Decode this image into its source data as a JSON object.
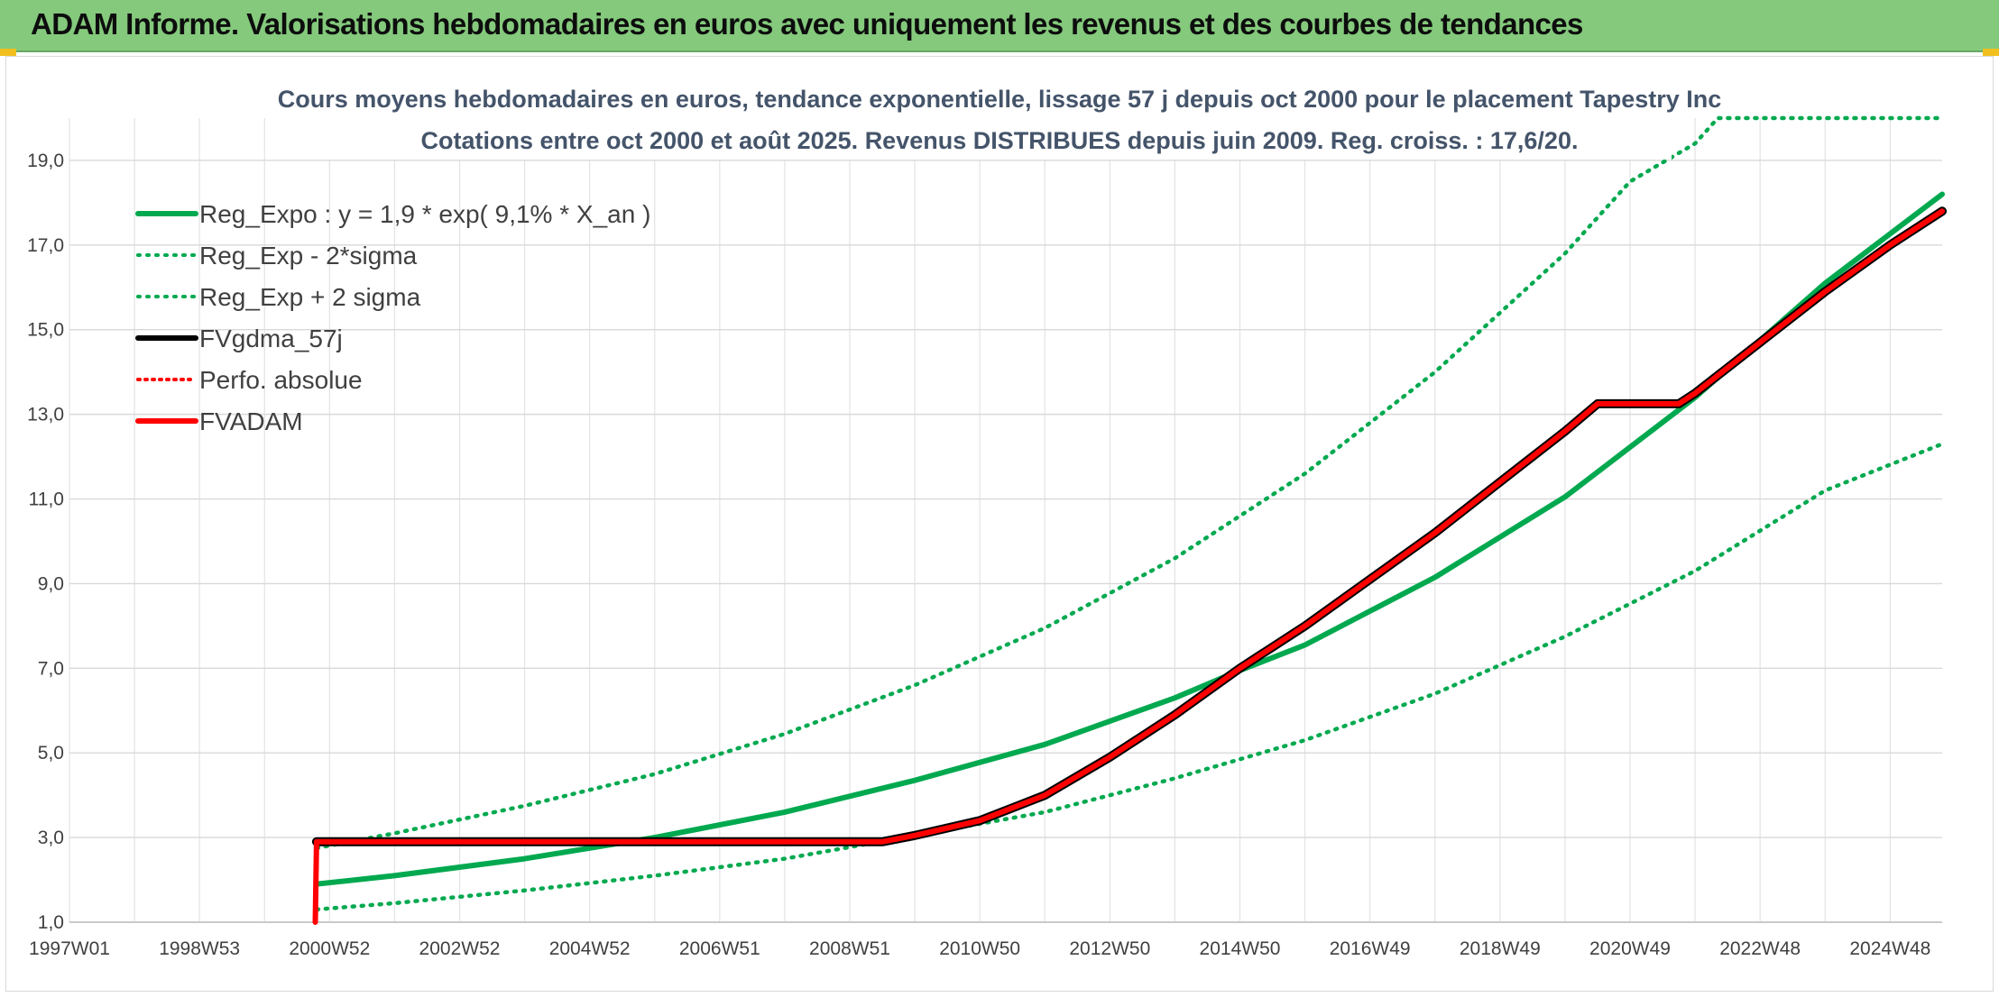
{
  "banner": {
    "title": "ADAM Informe. Valorisations hebdomadaires en euros avec uniquement les revenus et des courbes de tendances"
  },
  "colors": {
    "banner_bg": "#84c97c",
    "reg_expo": "#00a94f",
    "sigma_bands": "#00a94f",
    "fvgdma": "#000000",
    "perfo": "#ff0000",
    "fvadam": "#ff0000",
    "title_text": "#44546a"
  },
  "chart_data": {
    "type": "line",
    "title": [
      "Cours moyens hebdomadaires en euros, tendance exponentielle, lissage 57 j depuis oct 2000 pour le placement Tapestry Inc",
      "Cotations entre oct 2000 et août 2025. Revenus DISTRIBUES depuis juin 2009. Reg. croiss. : 17,6/20."
    ],
    "xlabel": "",
    "ylabel": "",
    "xlim": [
      1997.0,
      2025.8
    ],
    "ylim": [
      1.0,
      20.0
    ],
    "grid": true,
    "legend_position": "top-left",
    "x_ticks": [
      {
        "label": "1997W01",
        "x": 1997.0
      },
      {
        "label": "1998W53",
        "x": 1999.0
      },
      {
        "label": "2000W52",
        "x": 2001.0
      },
      {
        "label": "2002W52",
        "x": 2003.0
      },
      {
        "label": "2004W52",
        "x": 2005.0
      },
      {
        "label": "2006W51",
        "x": 2007.0
      },
      {
        "label": "2008W51",
        "x": 2009.0
      },
      {
        "label": "2010W50",
        "x": 2011.0
      },
      {
        "label": "2012W50",
        "x": 2013.0
      },
      {
        "label": "2014W50",
        "x": 2015.0
      },
      {
        "label": "2016W49",
        "x": 2017.0
      },
      {
        "label": "2018W49",
        "x": 2019.0
      },
      {
        "label": "2020W49",
        "x": 2021.0
      },
      {
        "label": "2022W48",
        "x": 2023.0
      },
      {
        "label": "2024W48",
        "x": 2025.0
      }
    ],
    "y_ticks": [
      {
        "label": "1,0",
        "y": 1.0
      },
      {
        "label": "3,0",
        "y": 3.0
      },
      {
        "label": "5,0",
        "y": 5.0
      },
      {
        "label": "7,0",
        "y": 7.0
      },
      {
        "label": "9,0",
        "y": 9.0
      },
      {
        "label": "11,0",
        "y": 11.0
      },
      {
        "label": "13,0",
        "y": 13.0
      },
      {
        "label": "15,0",
        "y": 15.0
      },
      {
        "label": "17,0",
        "y": 17.0
      },
      {
        "label": "19,0",
        "y": 19.0
      }
    ],
    "series": [
      {
        "name": "Reg_Expo : y = 1,9 * exp( 9,1% *  X_an )",
        "style": "solid-thick-green",
        "x": [
          2000.8,
          2002.0,
          2004.0,
          2006.0,
          2008.0,
          2010.0,
          2012.0,
          2014.0,
          2015.0,
          2016.0,
          2018.0,
          2020.0,
          2022.0,
          2024.0,
          2025.8
        ],
        "y": [
          1.9,
          2.1,
          2.5,
          3.0,
          3.6,
          4.35,
          5.2,
          6.3,
          6.95,
          7.55,
          9.15,
          11.05,
          13.4,
          16.1,
          18.2
        ]
      },
      {
        "name": "Reg_Exp - 2*sigma",
        "style": "dotted-green",
        "x": [
          2000.8,
          2002.0,
          2004.0,
          2006.0,
          2008.0,
          2010.0,
          2012.0,
          2014.0,
          2016.0,
          2018.0,
          2020.0,
          2022.0,
          2024.0,
          2025.8
        ],
        "y": [
          1.3,
          1.45,
          1.75,
          2.1,
          2.5,
          3.05,
          3.6,
          4.4,
          5.3,
          6.4,
          7.75,
          9.3,
          11.2,
          12.3
        ]
      },
      {
        "name": "Reg_Exp + 2 sigma",
        "style": "dotted-green",
        "x": [
          2000.8,
          2002.0,
          2004.0,
          2006.0,
          2008.0,
          2010.0,
          2012.0,
          2014.0,
          2016.0,
          2018.0,
          2020.0,
          2021.0,
          2022.0,
          2022.35,
          2025.8
        ],
        "y": [
          2.75,
          3.1,
          3.75,
          4.5,
          5.45,
          6.6,
          7.95,
          9.6,
          11.6,
          14.0,
          16.8,
          18.5,
          19.4,
          20.0,
          20.0
        ]
      },
      {
        "name": "FVgdma_57j",
        "style": "solid-black",
        "x": [
          2000.8,
          2009.5,
          2010.0,
          2011.0,
          2012.0,
          2013.0,
          2014.0,
          2015.0,
          2016.0,
          2017.0,
          2018.0,
          2019.0,
          2020.0,
          2020.5,
          2021.75,
          2022.0,
          2023.0,
          2024.0,
          2025.0,
          2025.8
        ],
        "y": [
          2.9,
          2.9,
          3.05,
          3.4,
          4.0,
          4.9,
          5.9,
          7.0,
          8.0,
          9.1,
          10.2,
          11.4,
          12.6,
          13.25,
          13.25,
          13.5,
          14.7,
          15.9,
          17.0,
          17.8
        ]
      },
      {
        "name": "Perfo. absolue",
        "style": "dotted-red",
        "x": [
          2000.8,
          2009.5,
          2010.0,
          2011.0,
          2012.0,
          2013.0,
          2014.0,
          2015.0,
          2016.0,
          2017.0,
          2018.0,
          2019.0,
          2020.0,
          2020.5,
          2021.75,
          2022.0,
          2023.0,
          2024.0,
          2025.0,
          2025.8
        ],
        "y": [
          2.9,
          2.9,
          3.05,
          3.4,
          4.0,
          4.9,
          5.9,
          7.0,
          8.0,
          9.1,
          10.2,
          11.4,
          12.6,
          13.25,
          13.25,
          13.5,
          14.7,
          15.9,
          17.0,
          17.8
        ]
      },
      {
        "name": "FVADAM",
        "style": "solid-thick-red",
        "x": [
          2000.78,
          2000.8,
          2009.5,
          2010.0,
          2011.0,
          2012.0,
          2013.0,
          2014.0,
          2015.0,
          2016.0,
          2017.0,
          2018.0,
          2019.0,
          2020.0,
          2020.5,
          2021.75,
          2022.0,
          2023.0,
          2024.0,
          2025.0,
          2025.8
        ],
        "y": [
          1.0,
          2.9,
          2.9,
          3.05,
          3.4,
          4.0,
          4.9,
          5.9,
          7.0,
          8.0,
          9.1,
          10.2,
          11.4,
          12.6,
          13.25,
          13.25,
          13.5,
          14.7,
          15.9,
          17.0,
          17.8
        ]
      }
    ]
  }
}
